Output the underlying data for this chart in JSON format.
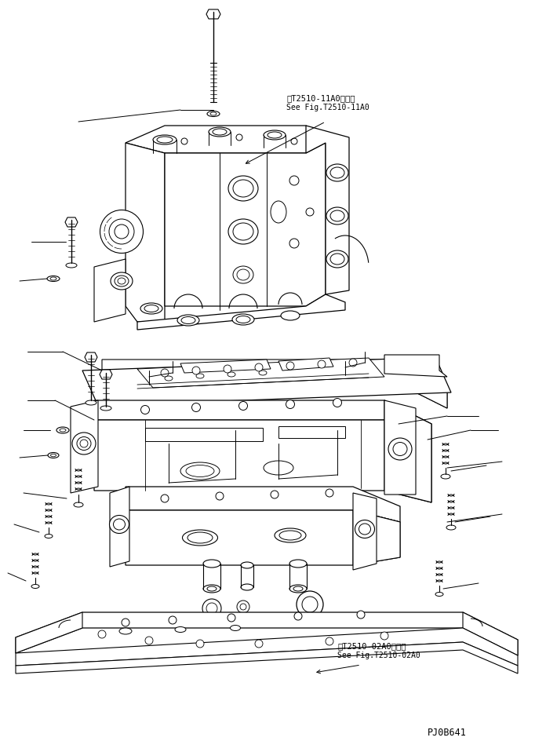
{
  "bg_color": "#ffffff",
  "fig_width": 6.96,
  "fig_height": 9.58,
  "dpi": 100,
  "label1_line1": "第T2510-11A0図参照",
  "label1_line2": "See Fig.T2510-11A0",
  "label2_line1": "第T2510-02A0図参照",
  "label2_line2": "See Fig.T2510-02A0",
  "watermark": "PJ0B641"
}
